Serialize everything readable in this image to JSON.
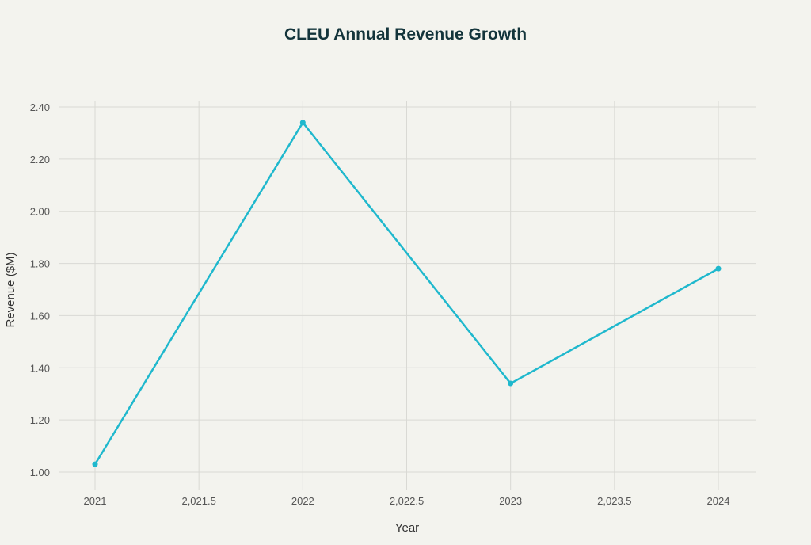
{
  "chart_data": {
    "type": "line",
    "title": "CLEU Annual Revenue Growth",
    "xlabel": "Year",
    "ylabel": "Revenue ($M)",
    "x": [
      2021,
      2022,
      2023,
      2024
    ],
    "values": [
      1.03,
      2.34,
      1.34,
      1.78
    ],
    "xlim": [
      2020.8,
      2024.2
    ],
    "ylim": [
      1.0,
      2.4
    ],
    "x_ticks": [
      2021,
      2021.5,
      2022,
      2022.5,
      2023,
      2023.5,
      2024
    ],
    "x_tick_labels": [
      "2021",
      "2,021.5",
      "2022",
      "2,022.5",
      "2023",
      "2,023.5",
      "2024"
    ],
    "y_ticks": [
      1.0,
      1.2,
      1.4,
      1.6,
      1.8,
      2.0,
      2.2,
      2.4
    ],
    "y_tick_labels": [
      "1.00",
      "1.20",
      "1.40",
      "1.60",
      "1.80",
      "2.00",
      "2.20",
      "2.40"
    ],
    "grid": true,
    "markers": true,
    "colors": {
      "line": "#1fb8cd",
      "background": "#f3f3ee",
      "grid": "#d9d9d4",
      "title": "#13343b",
      "text": "#555555"
    }
  }
}
